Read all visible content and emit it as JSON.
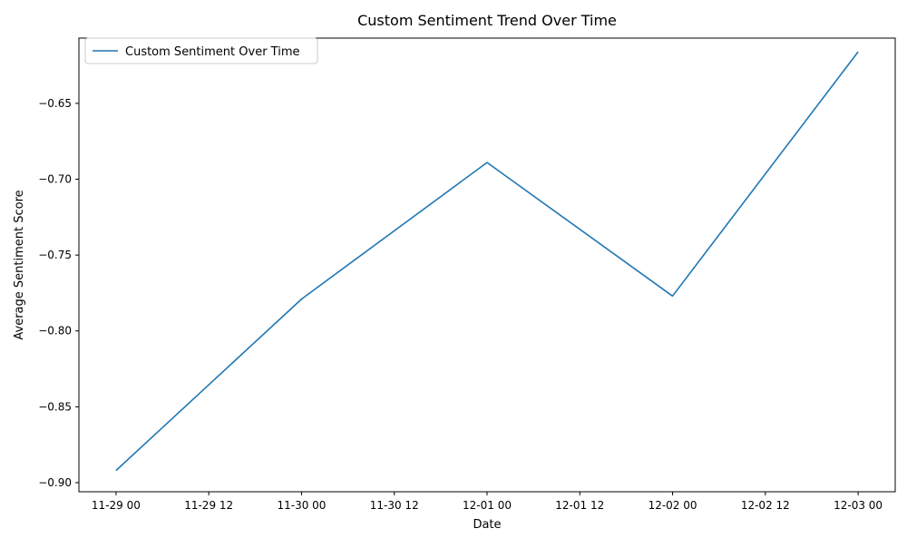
{
  "chart_data": {
    "type": "line",
    "title": "Custom Sentiment Trend Over Time",
    "xlabel": "Date",
    "ylabel": "Average Sentiment Score",
    "x_tick_labels": [
      "11-29 00",
      "11-29 12",
      "11-30 00",
      "11-30 12",
      "12-01 00",
      "12-01 12",
      "12-02 00",
      "12-02 12",
      "12-03 00"
    ],
    "y_tick_labels": [
      "−0.90",
      "−0.85",
      "−0.80",
      "−0.75",
      "−0.70",
      "−0.65"
    ],
    "y_ticks": [
      -0.9,
      -0.85,
      -0.8,
      -0.75,
      -0.7,
      -0.65
    ],
    "xlim": [
      "11-28 21",
      "12-03 03"
    ],
    "ylim": [
      -0.906,
      -0.607
    ],
    "grid": false,
    "legend_position": "upper-left",
    "series": [
      {
        "name": "Custom Sentiment Over Time",
        "color": "#1f77b4",
        "x": [
          "2023-11-29",
          "2023-11-30",
          "2023-12-01",
          "2023-12-02",
          "2023-12-03"
        ],
        "y": [
          -0.892,
          -0.779,
          -0.689,
          -0.777,
          -0.616
        ]
      }
    ]
  }
}
